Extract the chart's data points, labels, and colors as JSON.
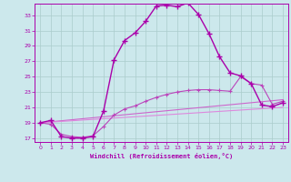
{
  "xlabel": "Windchill (Refroidissement éolien,°C)",
  "bg_color": "#cce8ec",
  "grid_color": "#aacccc",
  "line_color1": "#aa00aa",
  "line_color2": "#bb44bb",
  "line_color3": "#cc66cc",
  "line_color4": "#dd88dd",
  "xlim": [
    -0.5,
    23.5
  ],
  "ylim": [
    16.5,
    34.5
  ],
  "xticks": [
    0,
    1,
    2,
    3,
    4,
    5,
    6,
    7,
    8,
    9,
    10,
    11,
    12,
    13,
    14,
    15,
    16,
    17,
    18,
    19,
    20,
    21,
    22,
    23
  ],
  "yticks": [
    17,
    19,
    21,
    23,
    25,
    27,
    29,
    31,
    33
  ],
  "curve1_x": [
    0,
    1,
    2,
    3,
    4,
    5,
    6,
    7,
    8,
    9,
    10,
    11,
    12,
    13,
    14,
    15,
    16,
    17,
    18,
    19,
    20,
    21,
    22,
    23
  ],
  "curve1_y": [
    19.0,
    19.3,
    17.2,
    17.0,
    17.0,
    17.2,
    20.5,
    27.2,
    29.7,
    30.7,
    32.2,
    34.2,
    34.3,
    34.1,
    34.6,
    33.1,
    30.6,
    27.6,
    25.5,
    25.1,
    24.1,
    21.3,
    21.1,
    21.6
  ],
  "curve2_x": [
    0,
    1,
    2,
    3,
    4,
    5,
    6,
    7,
    8,
    9,
    10,
    11,
    12,
    13,
    14,
    15,
    16,
    17,
    18,
    19,
    20,
    21,
    22,
    23
  ],
  "curve2_y": [
    19.0,
    18.8,
    17.5,
    17.2,
    17.1,
    17.3,
    18.5,
    20.0,
    20.8,
    21.2,
    21.8,
    22.3,
    22.7,
    23.0,
    23.2,
    23.3,
    23.3,
    23.2,
    23.1,
    25.0,
    24.1,
    23.9,
    21.4,
    21.8
  ],
  "curve3_x": [
    0,
    23
  ],
  "curve3_y": [
    19.0,
    22.0
  ],
  "curve4_x": [
    0,
    23
  ],
  "curve4_y": [
    19.0,
    21.0
  ]
}
